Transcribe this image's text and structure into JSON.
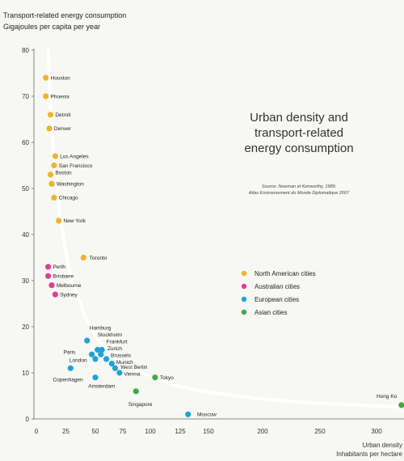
{
  "chart_data": {
    "type": "scatter",
    "ylabel_lines": [
      "Transport-related energy consumption",
      "Gigajoules per capita per year"
    ],
    "xlabel_lines": [
      "Urban density",
      "Inhabitants per hectare"
    ],
    "title_lines": [
      "Urban density and",
      "transport-related",
      "energy consumption"
    ],
    "source_lines": [
      "Source: Newman et Kenworthy, 1989,",
      "Atlas Environnement du Monde Diplomatique 2007"
    ],
    "xlim": [
      0,
      330
    ],
    "ylim": [
      0,
      80
    ],
    "xticks": [
      0,
      25,
      50,
      75,
      100,
      125,
      150,
      200,
      250,
      300
    ],
    "yticks": [
      0,
      10,
      20,
      30,
      40,
      50,
      60,
      70,
      80
    ],
    "series": [
      {
        "name": "North American cities",
        "color": "#f0b429"
      },
      {
        "name": "Australian cities",
        "color": "#e6399b"
      },
      {
        "name": "European cities",
        "color": "#1fa3d8"
      },
      {
        "name": "Asian cities",
        "color": "#44a844"
      }
    ],
    "points": [
      {
        "city": "Houston",
        "x": 8,
        "y": 74,
        "s": 0
      },
      {
        "city": "Phoenix",
        "x": 8,
        "y": 70,
        "s": 0
      },
      {
        "city": "Detroit",
        "x": 12,
        "y": 66,
        "s": 0
      },
      {
        "city": "Denver",
        "x": 11,
        "y": 63,
        "s": 0
      },
      {
        "city": "Los Angeles",
        "x": 16,
        "y": 57,
        "s": 0
      },
      {
        "city": "San Francisco",
        "x": 15,
        "y": 55,
        "s": 0
      },
      {
        "city": "Boston",
        "x": 12,
        "y": 53,
        "s": 0
      },
      {
        "city": "Washington",
        "x": 13,
        "y": 51,
        "s": 0
      },
      {
        "city": "Chicago",
        "x": 15,
        "y": 48,
        "s": 0
      },
      {
        "city": "New York",
        "x": 19,
        "y": 43,
        "s": 0
      },
      {
        "city": "Toronto",
        "x": 40,
        "y": 35,
        "s": 0
      },
      {
        "city": "Perth",
        "x": 10,
        "y": 33,
        "s": 1
      },
      {
        "city": "Brisbane",
        "x": 10,
        "y": 31,
        "s": 1
      },
      {
        "city": "Melbourne",
        "x": 13,
        "y": 29,
        "s": 1
      },
      {
        "city": "Sydney",
        "x": 16,
        "y": 27,
        "s": 1
      },
      {
        "city": "Hamburg",
        "x": 43,
        "y": 17,
        "s": 2
      },
      {
        "city": "Stockholm",
        "x": 52,
        "y": 15,
        "s": 2
      },
      {
        "city": "Frankfurt",
        "x": 56,
        "y": 15,
        "s": 2
      },
      {
        "city": "Zurich",
        "x": 55,
        "y": 14,
        "s": 2
      },
      {
        "city": "Brussels",
        "x": 60,
        "y": 13,
        "s": 2
      },
      {
        "city": "Munich",
        "x": 65,
        "y": 12,
        "s": 2
      },
      {
        "city": "Paris",
        "x": 47,
        "y": 14,
        "s": 2
      },
      {
        "city": "London",
        "x": 50,
        "y": 13,
        "s": 2
      },
      {
        "city": "West Berlin",
        "x": 68,
        "y": 11,
        "s": 2
      },
      {
        "city": "Vienna",
        "x": 72,
        "y": 10,
        "s": 2
      },
      {
        "city": "Copenhagen",
        "x": 29,
        "y": 11,
        "s": 2
      },
      {
        "city": "Amsterdam",
        "x": 50,
        "y": 9,
        "s": 2
      },
      {
        "city": "Tokyo",
        "x": 104,
        "y": 9,
        "s": 3
      },
      {
        "city": "Singapore",
        "x": 87,
        "y": 6,
        "s": 3
      },
      {
        "city": "Moscow",
        "x": 132,
        "y": 1,
        "s": 2
      },
      {
        "city": "Hong Kong",
        "x": 322,
        "y": 3,
        "s": 3
      }
    ],
    "point_labels": [
      {
        "text": "Houston",
        "x": 12,
        "y": 74
      },
      {
        "text": "Phoenix",
        "x": 12,
        "y": 70
      },
      {
        "text": "Detroit",
        "x": 16,
        "y": 66
      },
      {
        "text": "Denver",
        "x": 15,
        "y": 63
      },
      {
        "text": "Los Angeles",
        "x": 20,
        "y": 57
      },
      {
        "text": "San Francisco",
        "x": 19,
        "y": 55
      },
      {
        "text": "Boston",
        "x": 16,
        "y": 53.5
      },
      {
        "text": "Washington",
        "x": 17,
        "y": 51
      },
      {
        "text": "Chicago",
        "x": 19,
        "y": 48
      },
      {
        "text": "New York",
        "x": 23,
        "y": 43
      },
      {
        "text": "Toronto",
        "x": 45,
        "y": 35
      },
      {
        "text": "Perth",
        "x": 14,
        "y": 33
      },
      {
        "text": "Brisbane",
        "x": 14,
        "y": 31
      },
      {
        "text": "Melbourne",
        "x": 17,
        "y": 29
      },
      {
        "text": "Sydney",
        "x": 20,
        "y": 27
      },
      {
        "text": "Hamburg",
        "x": 45,
        "y": 19.8
      },
      {
        "text": "Stockholm",
        "x": 52,
        "y": 18.3
      },
      {
        "text": "Frankfurt",
        "x": 60,
        "y": 16.8
      },
      {
        "text": "Zurich",
        "x": 61,
        "y": 15.3
      },
      {
        "text": "Brussels",
        "x": 64,
        "y": 13.8
      },
      {
        "text": "Munich",
        "x": 69,
        "y": 12.3
      },
      {
        "text": "Paris",
        "x": 23,
        "y": 14.5
      },
      {
        "text": "London",
        "x": 28,
        "y": 12.8
      },
      {
        "text": "West Berlin",
        "x": 73,
        "y": 11.3
      },
      {
        "text": "Vienna",
        "x": 76,
        "y": 9.8
      },
      {
        "text": "Copenhagen",
        "x": 14,
        "y": 8.6
      },
      {
        "text": "Amsterdam",
        "x": 44,
        "y": 7.2
      },
      {
        "text": "Tokyo",
        "x": 108,
        "y": 9
      },
      {
        "text": "Singapore",
        "x": 80,
        "y": 3.2
      },
      {
        "text": "Moscow",
        "x": 140,
        "y": 1
      },
      {
        "text": "Hong Ko",
        "x": 300,
        "y": 5
      }
    ],
    "trend_curve": [
      [
        10,
        80
      ],
      [
        12,
        68
      ],
      [
        15,
        56
      ],
      [
        20,
        44
      ],
      [
        25,
        36
      ],
      [
        30,
        30
      ],
      [
        40,
        23
      ],
      [
        50,
        18
      ],
      [
        60,
        15
      ],
      [
        75,
        12
      ],
      [
        100,
        9
      ],
      [
        125,
        7
      ],
      [
        150,
        5.8
      ],
      [
        200,
        4.3
      ],
      [
        250,
        3.4
      ],
      [
        300,
        2.8
      ],
      [
        330,
        2.5
      ]
    ]
  }
}
